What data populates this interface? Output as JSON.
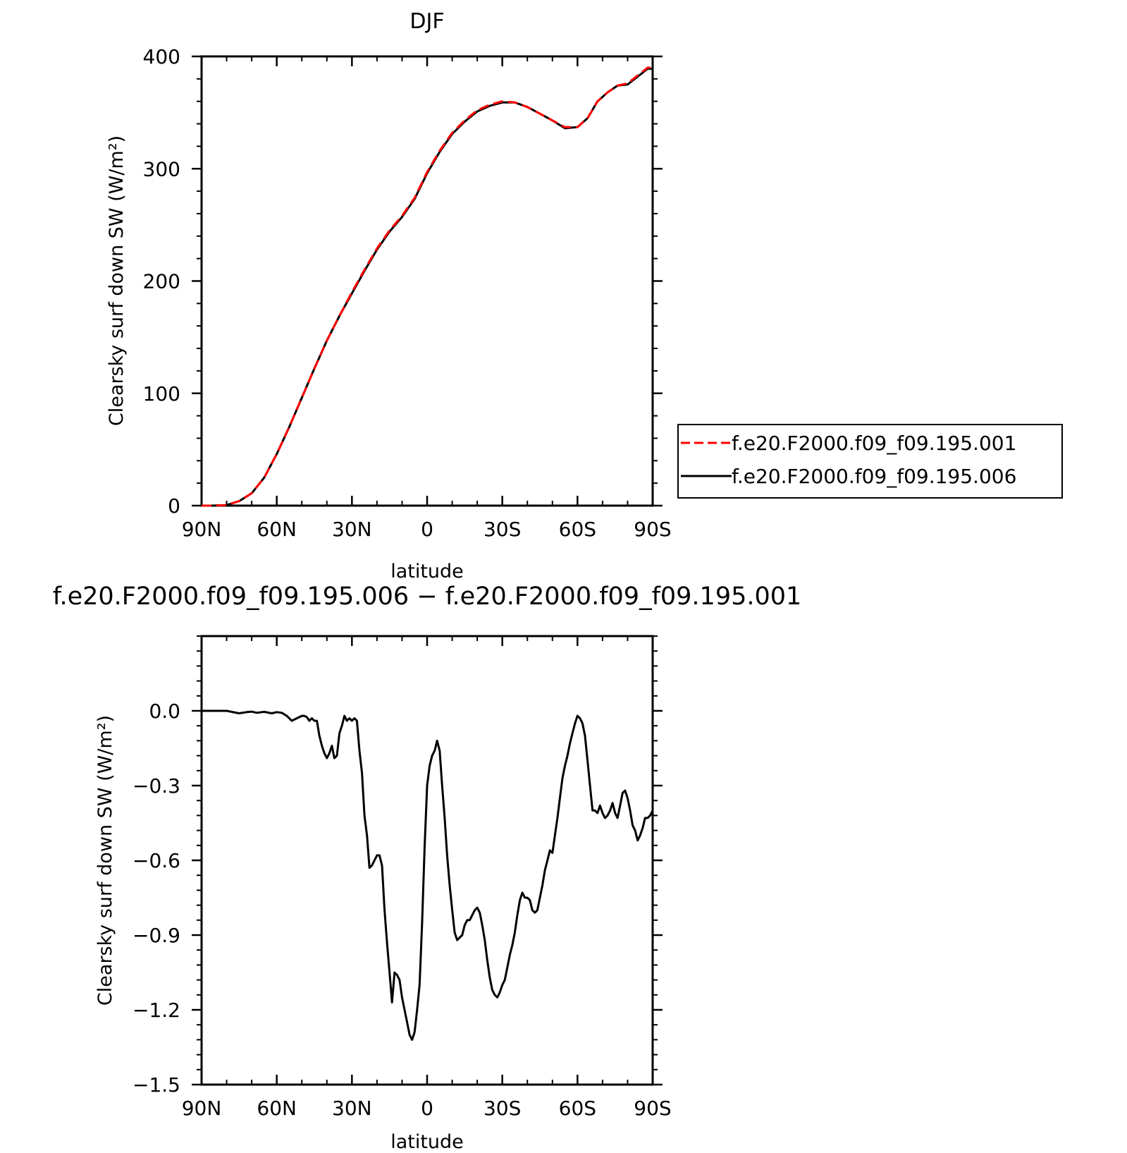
{
  "chart_data": [
    {
      "type": "line",
      "title": "DJF",
      "xlabel": "latitude",
      "ylabel": "Clearsky surf down SW (W/m²)",
      "xlim": [
        -90,
        90
      ],
      "ylim": [
        0,
        400
      ],
      "x_ticks": [
        -90,
        -60,
        -30,
        0,
        30,
        60,
        90
      ],
      "x_tick_labels": [
        "90N",
        "60N",
        "30N",
        "0",
        "30S",
        "60S",
        "90S"
      ],
      "y_ticks": [
        0,
        100,
        200,
        300,
        400
      ],
      "y_tick_labels": [
        "0",
        "100",
        "200",
        "300",
        "400"
      ],
      "legend_position": "right",
      "series": [
        {
          "name": "f.e20.F2000.f09_f09.195.001",
          "color": "#ff0000",
          "style": "dashed",
          "x": [
            -90,
            -86,
            -80,
            -75,
            -70,
            -65,
            -60,
            -55,
            -50,
            -45,
            -40,
            -35,
            -30,
            -25,
            -20,
            -15,
            -10,
            -5,
            0,
            5,
            10,
            15,
            20,
            25,
            30,
            35,
            40,
            45,
            50,
            55,
            60,
            64,
            68,
            72,
            76,
            80,
            84,
            88,
            90
          ],
          "y": [
            0,
            0,
            0.5,
            4,
            11,
            25,
            46,
            70,
            96,
            122,
            147,
            169,
            190,
            210,
            229,
            245,
            258,
            274,
            297,
            316,
            332,
            343,
            352,
            357,
            360,
            359,
            355,
            349,
            343,
            337,
            337,
            345,
            360,
            368,
            374,
            376,
            383,
            390,
            390
          ]
        },
        {
          "name": "f.e20.F2000.f09_f09.195.006",
          "color": "#000000",
          "style": "solid",
          "x": [
            -90,
            -86,
            -80,
            -75,
            -70,
            -65,
            -60,
            -55,
            -50,
            -45,
            -40,
            -35,
            -30,
            -25,
            -20,
            -15,
            -10,
            -5,
            0,
            5,
            10,
            15,
            20,
            25,
            30,
            35,
            40,
            45,
            50,
            55,
            60,
            64,
            68,
            72,
            76,
            80,
            84,
            88,
            90
          ],
          "y": [
            0,
            0,
            0.5,
            4,
            11,
            25,
            46,
            70,
            96,
            122,
            147,
            169,
            189,
            209,
            228,
            244,
            257,
            273,
            296,
            315,
            331,
            342,
            351,
            356,
            359,
            359,
            355,
            349,
            343,
            336,
            337,
            345,
            360,
            368,
            374,
            375,
            382,
            389,
            389
          ]
        }
      ]
    },
    {
      "type": "line",
      "title": "f.e20.F2000.f09_f09.195.006 − f.e20.F2000.f09_f09.195.001",
      "xlabel": "latitude",
      "ylabel": "Clearsky surf down SW (W/m²)",
      "xlim": [
        -90,
        90
      ],
      "ylim": [
        -1.5,
        0.3
      ],
      "x_ticks": [
        -90,
        -60,
        -30,
        0,
        30,
        60,
        90
      ],
      "x_tick_labels": [
        "90N",
        "60N",
        "30N",
        "0",
        "30S",
        "60S",
        "90S"
      ],
      "y_ticks": [
        -1.5,
        -1.2,
        -0.9,
        -0.6,
        -0.3,
        0.0
      ],
      "y_tick_labels": [
        "−1.5",
        "−1.2",
        "−0.9",
        "−0.6",
        "−0.3",
        "0.0"
      ],
      "series": [
        {
          "color": "#000000",
          "style": "solid",
          "x": [
            -90,
            -80,
            -75,
            -72,
            -70,
            -68,
            -65,
            -62,
            -60,
            -58,
            -56,
            -54,
            -52,
            -50,
            -49,
            -48,
            -47,
            -46,
            -45,
            -44,
            -43,
            -42,
            -41,
            -40,
            -39,
            -38,
            -37,
            -36,
            -35,
            -34,
            -33,
            -32,
            -31,
            -30,
            -29,
            -28,
            -27,
            -26,
            -25,
            -24,
            -23,
            -22,
            -21,
            -20,
            -19,
            -18,
            -17,
            -16,
            -15,
            -14,
            -13,
            -12,
            -11,
            -10,
            -9,
            -8,
            -7,
            -6,
            -5,
            -4,
            -3,
            -2,
            -1,
            0,
            1,
            2,
            3,
            4,
            5,
            6,
            7,
            8,
            9,
            10,
            11,
            12,
            13,
            14,
            15,
            16,
            17,
            18,
            19,
            20,
            21,
            22,
            23,
            24,
            25,
            26,
            27,
            28,
            29,
            30,
            31,
            32,
            33,
            34,
            35,
            36,
            37,
            38,
            39,
            40,
            41,
            42,
            43,
            44,
            45,
            46,
            47,
            48,
            49,
            50,
            51,
            52,
            53,
            54,
            55,
            56,
            57,
            58,
            59,
            60,
            61,
            62,
            63,
            64,
            65,
            66,
            67,
            68,
            69,
            70,
            71,
            72,
            73,
            74,
            75,
            76,
            77,
            78,
            79,
            80,
            81,
            82,
            83,
            84,
            85,
            86,
            87,
            88,
            89,
            90
          ],
          "y": [
            0,
            0,
            -0.01,
            -0.005,
            -0.003,
            -0.008,
            -0.004,
            -0.01,
            -0.005,
            -0.008,
            -0.02,
            -0.04,
            -0.03,
            -0.02,
            -0.02,
            -0.025,
            -0.04,
            -0.03,
            -0.04,
            -0.04,
            -0.1,
            -0.14,
            -0.17,
            -0.19,
            -0.17,
            -0.14,
            -0.19,
            -0.18,
            -0.09,
            -0.06,
            -0.02,
            -0.04,
            -0.03,
            -0.04,
            -0.03,
            -0.04,
            -0.16,
            -0.25,
            -0.42,
            -0.5,
            -0.63,
            -0.62,
            -0.6,
            -0.58,
            -0.58,
            -0.62,
            -0.8,
            -0.93,
            -1.05,
            -1.17,
            -1.05,
            -1.06,
            -1.08,
            -1.15,
            -1.2,
            -1.25,
            -1.3,
            -1.32,
            -1.29,
            -1.2,
            -1.1,
            -0.85,
            -0.55,
            -0.3,
            -0.22,
            -0.18,
            -0.16,
            -0.12,
            -0.16,
            -0.3,
            -0.43,
            -0.58,
            -0.7,
            -0.8,
            -0.89,
            -0.92,
            -0.91,
            -0.9,
            -0.86,
            -0.84,
            -0.84,
            -0.82,
            -0.8,
            -0.79,
            -0.81,
            -0.86,
            -0.92,
            -1.0,
            -1.07,
            -1.12,
            -1.14,
            -1.15,
            -1.13,
            -1.1,
            -1.08,
            -1.03,
            -0.98,
            -0.94,
            -0.89,
            -0.82,
            -0.76,
            -0.73,
            -0.75,
            -0.75,
            -0.76,
            -0.8,
            -0.81,
            -0.8,
            -0.75,
            -0.7,
            -0.64,
            -0.6,
            -0.56,
            -0.57,
            -0.5,
            -0.43,
            -0.35,
            -0.27,
            -0.22,
            -0.18,
            -0.13,
            -0.09,
            -0.05,
            -0.02,
            -0.03,
            -0.05,
            -0.1,
            -0.2,
            -0.3,
            -0.4,
            -0.4,
            -0.41,
            -0.38,
            -0.41,
            -0.43,
            -0.42,
            -0.4,
            -0.37,
            -0.41,
            -0.43,
            -0.38,
            -0.33,
            -0.32,
            -0.35,
            -0.4,
            -0.46,
            -0.48,
            -0.52,
            -0.5,
            -0.47,
            -0.43,
            -0.43,
            -0.42,
            -0.4
          ]
        }
      ]
    }
  ]
}
